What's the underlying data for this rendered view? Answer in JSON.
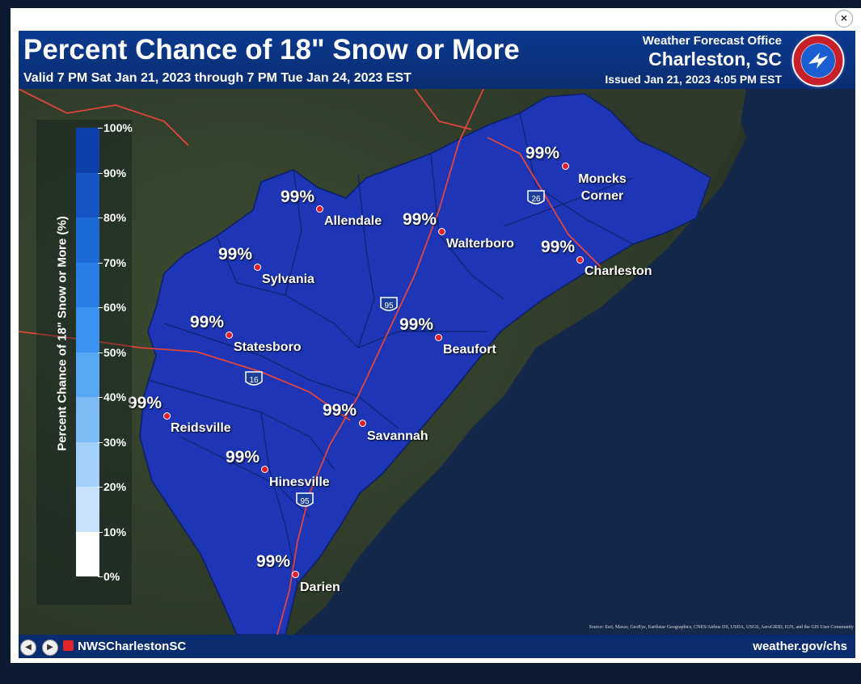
{
  "header": {
    "title": "Percent Chance of 18\" Snow or More",
    "subtitle": "Valid 7 PM Sat Jan 21, 2023 through 7 PM Tue Jan 24, 2023 EST",
    "office_line1": "Weather Forecast Office",
    "office_line2": "Charleston, SC",
    "issued": "Issued Jan 21, 2023 4:05 PM EST",
    "logo_text": "NATIONAL WEATHER SERVICE"
  },
  "legend": {
    "title": "Percent Chance of 18\" Snow or More (%)",
    "labels": [
      "100%",
      "90%",
      "80%",
      "70%",
      "60%",
      "50%",
      "40%",
      "30%",
      "20%",
      "10%",
      "0%"
    ],
    "colors": [
      "#0d3fa8",
      "#1556c4",
      "#1c6ad8",
      "#2a7fe6",
      "#3a93ef",
      "#56a8f3",
      "#7bbcf6",
      "#a3d0f8",
      "#c9e2fb",
      "#ffffff"
    ]
  },
  "locations": [
    {
      "name": "Moncks Corner",
      "value": "99%"
    },
    {
      "name": "Allendale",
      "value": "99%"
    },
    {
      "name": "Walterboro",
      "value": "99%"
    },
    {
      "name": "Charleston",
      "value": "99%"
    },
    {
      "name": "Sylvania",
      "value": "99%"
    },
    {
      "name": "Statesboro",
      "value": "99%"
    },
    {
      "name": "Beaufort",
      "value": "99%"
    },
    {
      "name": "Reidsville",
      "value": "99%"
    },
    {
      "name": "Savannah",
      "value": "99%"
    },
    {
      "name": "Hinesville",
      "value": "99%"
    },
    {
      "name": "Darien",
      "value": "99%"
    }
  ],
  "highways": [
    "26",
    "95",
    "16",
    "95"
  ],
  "footer": {
    "handle": "NWSCharlestonSC",
    "website": "weather.gov/chs",
    "credits": "Source: Esri, Maxar, GeoEye, Earthstar Geographics, CNES/Airbus DS, USDA, USGS, AeroGRID, IGN, and the GIS User Community"
  },
  "colors": {
    "forecast_area": "#1e36b5",
    "header_bg": "#0b3a8f",
    "ocean": "#14294a",
    "interstate": "#e0443c"
  },
  "viewer": {
    "close_symbol": "×",
    "prev_symbol": "◀",
    "next_symbol": "▶"
  }
}
